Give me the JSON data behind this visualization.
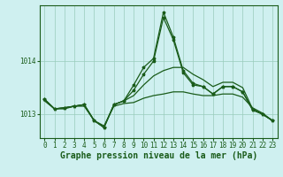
{
  "background_color": "#cff0f0",
  "plot_bg_color": "#cff0f0",
  "grid_color": "#99ccbb",
  "line_color": "#1a5c1a",
  "xlabel": "Graphe pression niveau de la mer (hPa)",
  "xlabel_fontsize": 7,
  "tick_fontsize": 5.5,
  "yticks": [
    1013,
    1014
  ],
  "ylim": [
    1012.55,
    1015.05
  ],
  "xlim": [
    -0.5,
    23.5
  ],
  "xticks": [
    0,
    1,
    2,
    3,
    4,
    5,
    6,
    7,
    8,
    9,
    10,
    11,
    12,
    13,
    14,
    15,
    16,
    17,
    18,
    19,
    20,
    21,
    22,
    23
  ],
  "series": [
    {
      "y": [
        1013.25,
        1013.1,
        1013.1,
        1013.15,
        1013.15,
        1012.88,
        1012.78,
        1013.15,
        1013.2,
        1013.22,
        1013.3,
        1013.35,
        1013.38,
        1013.42,
        1013.42,
        1013.38,
        1013.35,
        1013.35,
        1013.38,
        1013.38,
        1013.32,
        1013.12,
        1013.02,
        1012.88
      ],
      "marker": false,
      "lw": 0.9
    },
    {
      "y": [
        1013.28,
        1013.1,
        1013.12,
        1013.15,
        1013.18,
        1012.88,
        1012.75,
        1013.18,
        1013.25,
        1013.35,
        1013.55,
        1013.72,
        1013.82,
        1013.88,
        1013.88,
        1013.75,
        1013.65,
        1013.52,
        1013.6,
        1013.6,
        1013.5,
        1013.1,
        1013.0,
        1012.88
      ],
      "marker": false,
      "lw": 0.9
    },
    {
      "y": [
        1013.28,
        1013.1,
        1013.12,
        1013.15,
        1013.18,
        1012.88,
        1012.75,
        1013.18,
        1013.25,
        1013.45,
        1013.75,
        1014.0,
        1014.82,
        1014.4,
        1013.78,
        1013.55,
        1013.52,
        1013.38,
        1013.52,
        1013.52,
        1013.42,
        1013.08,
        1013.0,
        1012.88
      ],
      "marker": true,
      "lw": 0.9
    },
    {
      "y": [
        1013.28,
        1013.1,
        1013.12,
        1013.15,
        1013.18,
        1012.88,
        1012.75,
        1013.18,
        1013.25,
        1013.55,
        1013.88,
        1014.05,
        1014.92,
        1014.45,
        1013.82,
        1013.58,
        1013.52,
        1013.38,
        1013.52,
        1013.52,
        1013.42,
        1013.08,
        1013.0,
        1012.88
      ],
      "marker": true,
      "lw": 0.9
    }
  ]
}
